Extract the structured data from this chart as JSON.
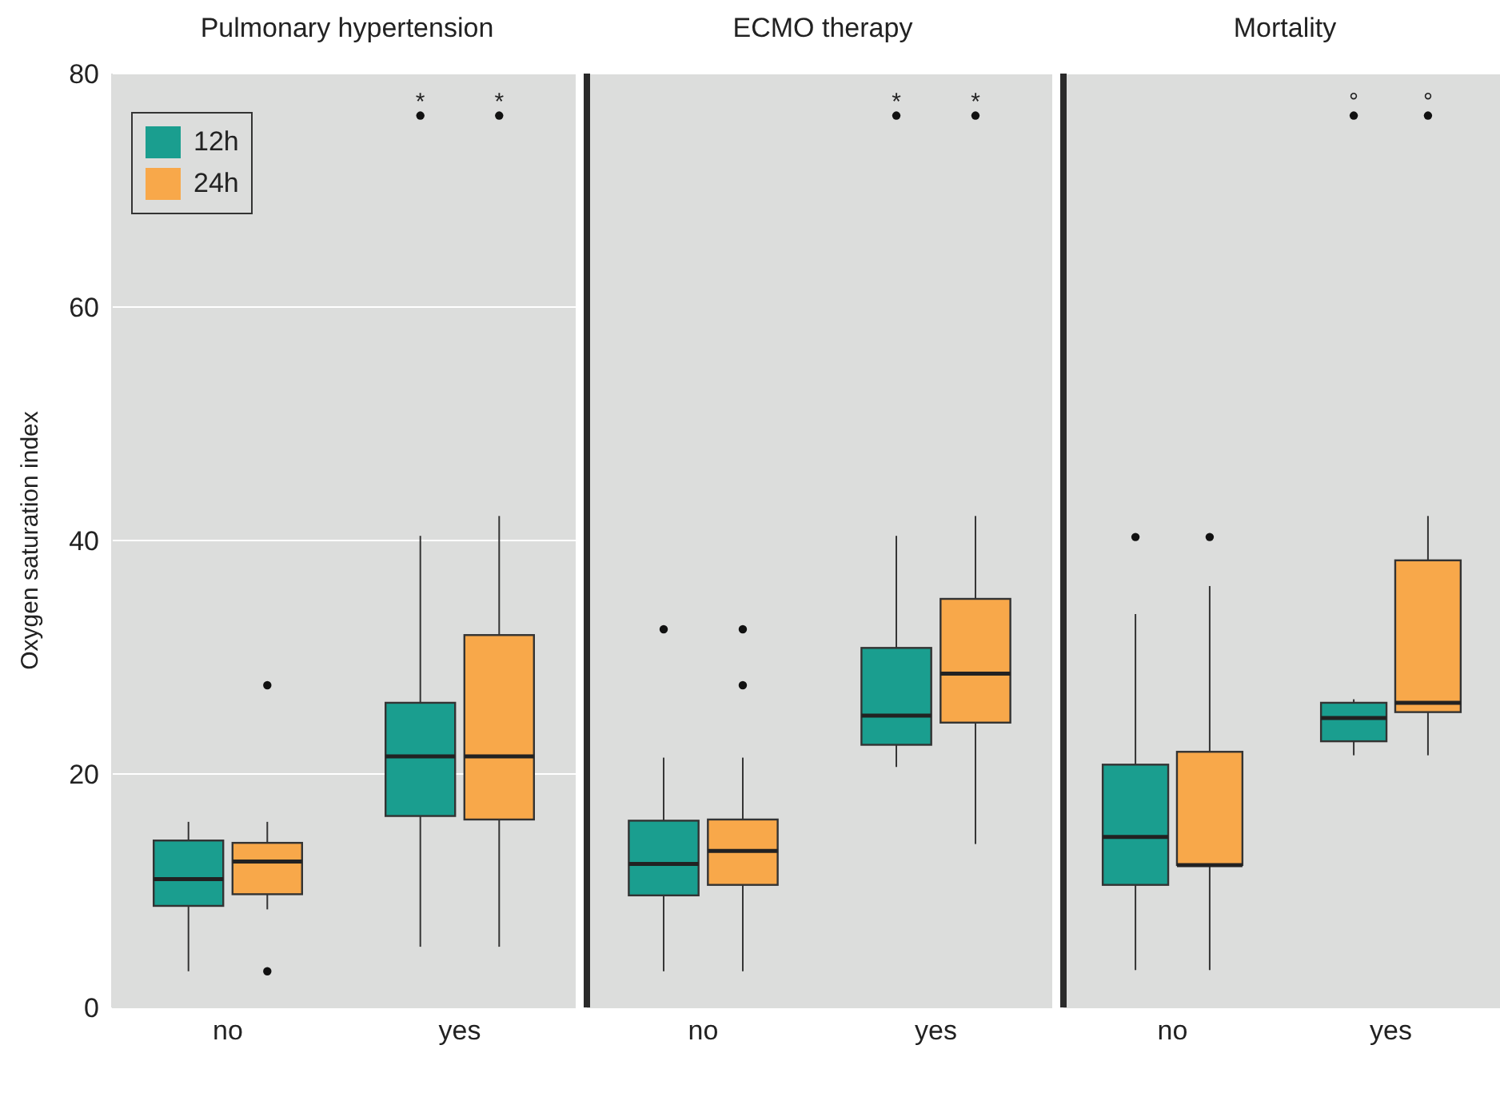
{
  "chart_data": [
    {
      "type": "box",
      "title": "Pulmonary hypertension",
      "ylabel": "Oxygen saturation index",
      "categories": [
        "no",
        "yes"
      ],
      "ylim": [
        0,
        80
      ],
      "yticks": [
        0,
        20,
        40,
        60,
        80
      ],
      "grid": "y",
      "legend": "top left",
      "series": [
        {
          "name": "12h",
          "color": "#1a9e8f",
          "boxes": [
            {
              "low": 3.1,
              "q1": 8.7,
              "median": 11.0,
              "q3": 14.3,
              "high": 15.9
            },
            {
              "low": 5.2,
              "q1": 16.4,
              "median": 21.5,
              "q3": 26.1,
              "high": 40.4,
              "outliers": [
                76.4
              ]
            }
          ]
        },
        {
          "name": "24h",
          "color": "#f8a84a",
          "boxes": [
            {
              "low": 8.4,
              "q1": 9.7,
              "median": 12.5,
              "q3": 14.1,
              "high": 15.9,
              "outliers": [
                27.6,
                3.1
              ]
            },
            {
              "low": 5.2,
              "q1": 16.1,
              "median": 21.5,
              "q3": 31.9,
              "high": 42.1,
              "outliers": [
                76.4
              ]
            }
          ]
        }
      ],
      "annotations": [
        "*",
        "*"
      ]
    },
    {
      "type": "box",
      "title": "ECMO therapy",
      "categories": [
        "no",
        "yes"
      ],
      "ylim": [
        0,
        80
      ],
      "yticks": [
        0,
        20,
        40,
        60,
        80
      ],
      "grid": "y",
      "tick_labels": "x",
      "series": [
        {
          "color": "#1a9e8f",
          "boxes": [
            {
              "low": 3.1,
              "q1": 9.6,
              "median": 12.3,
              "q3": 16.0,
              "high": 21.4,
              "outliers": [
                32.4
              ]
            },
            {
              "low": 20.6,
              "q1": 22.5,
              "median": 25.0,
              "q3": 30.8,
              "high": 40.4,
              "outliers": [
                76.4
              ]
            }
          ]
        },
        {
          "color": "#f8a84a",
          "boxes": [
            {
              "low": 3.1,
              "q1": 10.5,
              "median": 13.4,
              "q3": 16.1,
              "high": 21.4,
              "outliers": [
                32.4,
                27.6
              ]
            },
            {
              "low": 14.0,
              "q1": 24.4,
              "median": 28.6,
              "q3": 35.0,
              "high": 42.1,
              "outliers": [
                76.4
              ]
            }
          ]
        }
      ],
      "annotations": [
        "*",
        "*"
      ]
    },
    {
      "type": "box",
      "title": "Mortality",
      "categories": [
        "no",
        "yes"
      ],
      "ylim": [
        0,
        80
      ],
      "yticks": [
        0,
        20,
        40,
        60,
        80
      ],
      "grid": "y",
      "tick_labels": "x",
      "series": [
        {
          "color": "#1a9e8f",
          "boxes": [
            {
              "low": 3.2,
              "q1": 10.5,
              "median": 14.6,
              "q3": 20.8,
              "high": 33.7,
              "outliers": [
                40.3
              ]
            },
            {
              "low": 21.6,
              "q1": 22.8,
              "median": 24.8,
              "q3": 26.1,
              "high": 26.4,
              "outliers": [
                76.4
              ]
            }
          ]
        },
        {
          "color": "#f8a84a",
          "boxes": [
            {
              "low": 3.2,
              "q1": 12.2,
              "median": 12.2,
              "q3": 21.9,
              "high": 36.1,
              "outliers": [
                40.3
              ]
            },
            {
              "low": 21.6,
              "q1": 25.3,
              "median": 26.1,
              "q3": 38.3,
              "high": 42.1,
              "outliers": [
                76.4
              ]
            }
          ]
        }
      ],
      "annotations": [
        "°",
        "°"
      ]
    }
  ]
}
